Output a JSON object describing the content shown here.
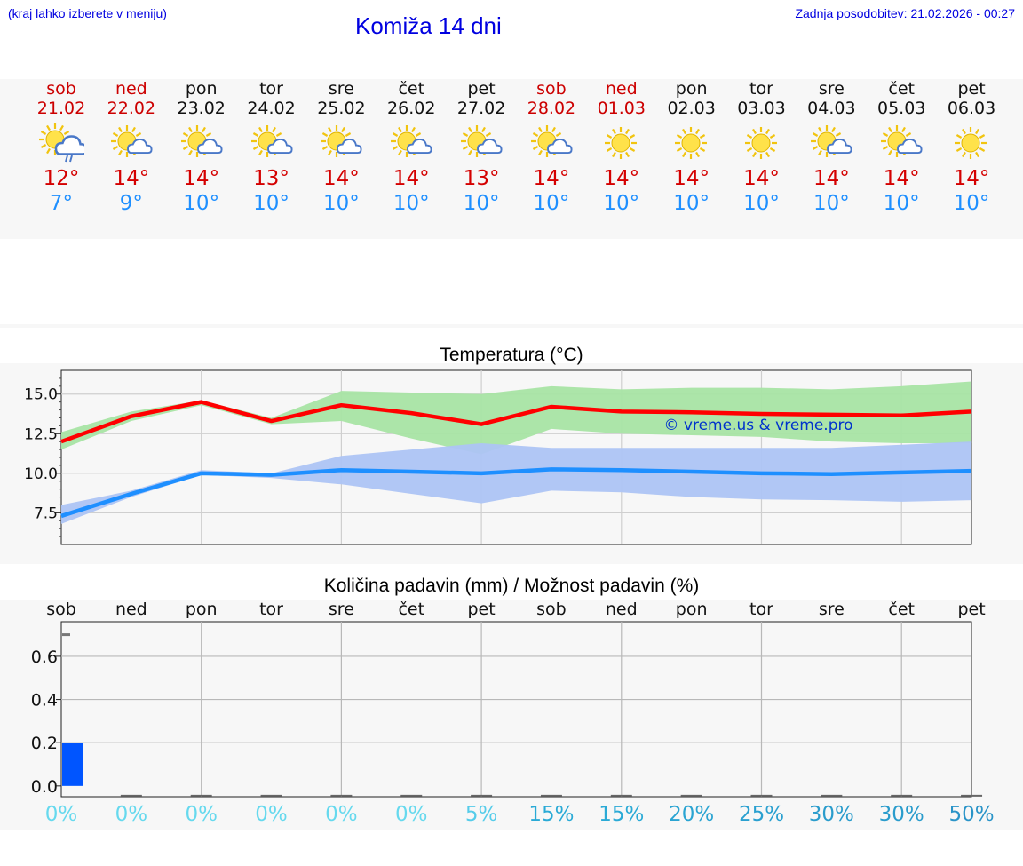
{
  "header": {
    "hint": "(kraj lahko izberete v meniju)",
    "title": "Komiža 14 dni",
    "updated": "Zadnja posodobitev: 21.02.2026 - 00:27"
  },
  "days": [
    {
      "name": "sob",
      "date": "21.02",
      "weekend": true,
      "icon": "sun-cloud-rain-icon",
      "tmax": "12°",
      "tmin": "7°"
    },
    {
      "name": "ned",
      "date": "22.02",
      "weekend": true,
      "icon": "sun-cloud-icon",
      "tmax": "14°",
      "tmin": "9°"
    },
    {
      "name": "pon",
      "date": "23.02",
      "weekend": false,
      "icon": "sun-cloud-icon",
      "tmax": "14°",
      "tmin": "10°"
    },
    {
      "name": "tor",
      "date": "24.02",
      "weekend": false,
      "icon": "sun-cloud-icon",
      "tmax": "13°",
      "tmin": "10°"
    },
    {
      "name": "sre",
      "date": "25.02",
      "weekend": false,
      "icon": "sun-cloud-icon",
      "tmax": "14°",
      "tmin": "10°"
    },
    {
      "name": "čet",
      "date": "26.02",
      "weekend": false,
      "icon": "sun-cloud-icon",
      "tmax": "14°",
      "tmin": "10°"
    },
    {
      "name": "pet",
      "date": "27.02",
      "weekend": false,
      "icon": "sun-cloud-icon",
      "tmax": "13°",
      "tmin": "10°"
    },
    {
      "name": "sob",
      "date": "28.02",
      "weekend": true,
      "icon": "sun-cloud-icon",
      "tmax": "14°",
      "tmin": "10°"
    },
    {
      "name": "ned",
      "date": "01.03",
      "weekend": true,
      "icon": "sun-icon",
      "tmax": "14°",
      "tmin": "10°"
    },
    {
      "name": "pon",
      "date": "02.03",
      "weekend": false,
      "icon": "sun-icon",
      "tmax": "14°",
      "tmin": "10°"
    },
    {
      "name": "tor",
      "date": "03.03",
      "weekend": false,
      "icon": "sun-icon",
      "tmax": "14°",
      "tmin": "10°"
    },
    {
      "name": "sre",
      "date": "04.03",
      "weekend": false,
      "icon": "sun-cloud-icon",
      "tmax": "14°",
      "tmin": "10°"
    },
    {
      "name": "čet",
      "date": "05.03",
      "weekend": false,
      "icon": "sun-cloud-icon",
      "tmax": "14°",
      "tmin": "10°"
    },
    {
      "name": "pet",
      "date": "06.03",
      "weekend": false,
      "icon": "sun-icon",
      "tmax": "14°",
      "tmin": "10°"
    }
  ],
  "colors": {
    "weekend": "#cc0000",
    "max_line": "#ff0000",
    "max_band": "#a8e4a4",
    "min_line": "#1e8fff",
    "min_band": "#adc4f4",
    "precip_bar": "#0055ff",
    "watermark": "#0033cc"
  },
  "chart_data": [
    {
      "type": "line",
      "title": "Temperatura (°C)",
      "x": [
        0,
        1,
        2,
        3,
        4,
        5,
        6,
        7,
        8,
        9,
        10,
        11,
        12,
        13
      ],
      "ylim": [
        5.5,
        16.5
      ],
      "yticks": [
        7.5,
        10.0,
        12.5,
        15.0
      ],
      "ytick_labels": [
        "7.5",
        "10.0",
        "12.5",
        "15.0"
      ],
      "watermark": "© vreme.us & vreme.pro",
      "series": [
        {
          "name": "max",
          "values": [
            12.0,
            13.6,
            14.5,
            13.3,
            14.3,
            13.8,
            13.1,
            14.2,
            13.9,
            13.85,
            13.75,
            13.7,
            13.65,
            13.9
          ],
          "band_low": [
            11.5,
            13.3,
            14.3,
            13.1,
            13.3,
            12.2,
            11.2,
            12.8,
            12.5,
            12.4,
            12.3,
            12.0,
            11.9,
            11.9
          ],
          "band_high": [
            12.6,
            13.9,
            14.6,
            13.5,
            15.2,
            15.1,
            15.0,
            15.5,
            15.3,
            15.4,
            15.4,
            15.3,
            15.5,
            15.8
          ]
        },
        {
          "name": "min",
          "values": [
            7.3,
            8.7,
            10.0,
            9.9,
            10.2,
            10.1,
            10.0,
            10.25,
            10.2,
            10.1,
            10.0,
            9.95,
            10.05,
            10.15
          ],
          "band_low": [
            6.8,
            8.5,
            9.9,
            9.7,
            9.3,
            8.7,
            8.1,
            8.9,
            8.8,
            8.5,
            8.35,
            8.3,
            8.2,
            8.3
          ],
          "band_high": [
            8.0,
            8.9,
            10.2,
            10.0,
            11.1,
            11.5,
            11.9,
            11.6,
            11.6,
            11.6,
            11.6,
            11.6,
            11.8,
            12.0
          ]
        }
      ]
    },
    {
      "type": "bar",
      "title": "Količina padavin (mm) / Možnost padavin (%)",
      "categories": [
        "sob",
        "ned",
        "pon",
        "tor",
        "sre",
        "čet",
        "pet",
        "sob",
        "ned",
        "pon",
        "tor",
        "sre",
        "čet",
        "pet"
      ],
      "values": [
        0.2,
        0,
        0,
        0,
        0,
        0,
        0,
        0,
        0,
        0,
        0,
        0,
        0,
        0
      ],
      "range_high": [
        0.7,
        0,
        0,
        0,
        0,
        0,
        0,
        0,
        0,
        0,
        0,
        0,
        0,
        0
      ],
      "ylim": [
        -0.05,
        0.76
      ],
      "yticks": [
        0.0,
        0.2,
        0.4,
        0.6
      ],
      "ytick_labels": [
        "0.0",
        "0.2",
        "0.4",
        "0.6"
      ],
      "probability": [
        "0%",
        "0%",
        "0%",
        "0%",
        "0%",
        "0%",
        "5%",
        "15%",
        "15%",
        "20%",
        "25%",
        "30%",
        "30%",
        "50%"
      ],
      "probability_colors": [
        "#66d9ee",
        "#66d9ee",
        "#66d9ee",
        "#66d9ee",
        "#66d9ee",
        "#66d9ee",
        "#55ccea",
        "#2aaad6",
        "#2aaad6",
        "#2aa4d2",
        "#2aa0d0",
        "#2a9ccc",
        "#2a9ccc",
        "#2a94c8"
      ]
    }
  ]
}
